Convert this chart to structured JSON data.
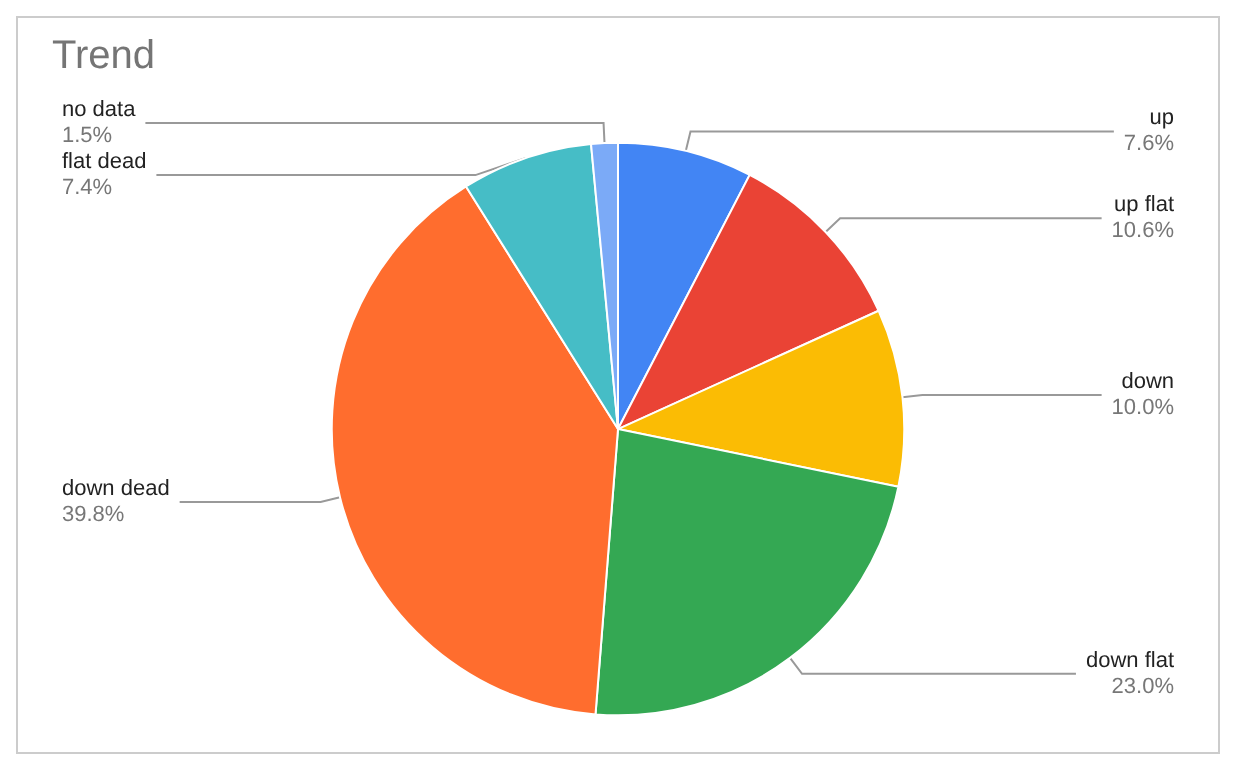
{
  "chart_data": {
    "type": "pie",
    "title": "Trend",
    "categories": [
      "up",
      "up flat",
      "down",
      "down flat",
      "down dead",
      "flat dead",
      "no data"
    ],
    "values": [
      7.6,
      10.6,
      10.0,
      23.0,
      39.8,
      7.4,
      1.5
    ],
    "value_labels": [
      "7.6%",
      "10.6%",
      "10.0%",
      "23.0%",
      "39.8%",
      "7.4%",
      "1.5%"
    ],
    "colors": [
      "#4285f4",
      "#ea4335",
      "#fbbc04",
      "#34a853",
      "#ff6d2e",
      "#46bdc6",
      "#7baaf7"
    ],
    "legend": false
  }
}
